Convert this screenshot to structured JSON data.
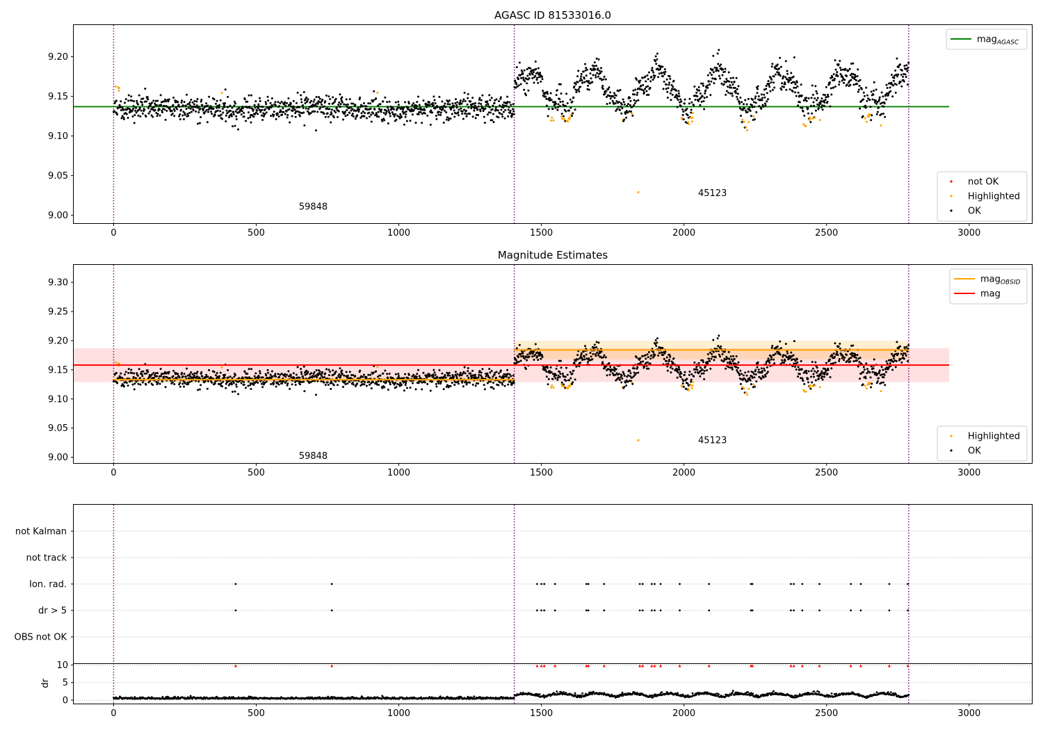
{
  "chart_data": [
    {
      "type": "scatter",
      "title": "AGASC ID 81533016.0",
      "xlim": [
        -140,
        3220
      ],
      "ylim": [
        8.99,
        9.24
      ],
      "xticks": [
        "0",
        "500",
        "1000",
        "1500",
        "2000",
        "2500",
        "3000"
      ],
      "yticks": [
        "9.00",
        "9.05",
        "9.10",
        "9.15",
        "9.20"
      ],
      "segments": [
        {
          "obsid": "59848",
          "x_start": 0,
          "x_end": 1405,
          "base_mag": 9.134,
          "noise": 0.008
        },
        {
          "obsid": "45123",
          "x_start": 1405,
          "x_end": 2788,
          "base_mag": 9.16,
          "noise": 0.012
        }
      ],
      "obs_boundaries_x": [
        0,
        1405,
        2788
      ],
      "hlines": [
        {
          "name": "mag_AGASC",
          "y": 9.137,
          "x_range": [
            -140,
            2930
          ],
          "color": "#008000"
        }
      ],
      "outliers": [
        {
          "x": 1840,
          "y": 9.029,
          "series": "Highlighted"
        }
      ],
      "series_colors": {
        "not OK": "#ff0000",
        "Highlighted": "#ffa500",
        "OK": "#000000"
      },
      "legend_top": {
        "location": "upper right",
        "entries": [
          {
            "label": "mag",
            "subscript": "AGASC",
            "color": "#008000",
            "kind": "line"
          }
        ]
      },
      "legend_bottom": {
        "location": "lower right",
        "entries": [
          {
            "label": "not OK",
            "color": "#ff0000",
            "kind": "marker"
          },
          {
            "label": "Highlighted",
            "color": "#ffa500",
            "kind": "marker"
          },
          {
            "label": "OK",
            "color": "#000000",
            "kind": "marker"
          }
        ]
      }
    },
    {
      "type": "scatter",
      "title": "Magnitude Estimates",
      "xlim": [
        -140,
        3220
      ],
      "ylim": [
        8.99,
        9.33
      ],
      "xticks": [
        "0",
        "500",
        "1000",
        "1500",
        "2000",
        "2500",
        "3000"
      ],
      "yticks": [
        "9.00",
        "9.05",
        "9.10",
        "9.15",
        "9.20",
        "9.25",
        "9.30"
      ],
      "obs_boundaries_x": [
        0,
        1405,
        2788
      ],
      "hlines": [
        {
          "name": "mag",
          "y": 9.158,
          "x_range": [
            -140,
            2930
          ],
          "color": "#ff0000",
          "band": [
            9.129,
            9.187
          ]
        },
        {
          "name": "mag_OBSID_59848",
          "y": 9.133,
          "x_range": [
            0,
            1405
          ],
          "color": "#ffa500",
          "band": [
            9.128,
            9.138
          ]
        },
        {
          "name": "mag_OBSID_45123",
          "y": 9.184,
          "x_range": [
            1405,
            2788
          ],
          "color": "#ffa500",
          "band": [
            9.168,
            9.2
          ]
        }
      ],
      "outliers": [
        {
          "x": 1840,
          "y": 9.029,
          "series": "Highlighted"
        }
      ],
      "legend_top": {
        "location": "upper right",
        "entries": [
          {
            "label": "mag",
            "subscript": "OBSID",
            "color": "#ffa500",
            "kind": "line"
          },
          {
            "label": "mag",
            "subscript": "",
            "color": "#ff0000",
            "kind": "line"
          }
        ]
      },
      "legend_bottom": {
        "location": "lower right",
        "entries": [
          {
            "label": "Highlighted",
            "color": "#ffa500",
            "kind": "marker"
          },
          {
            "label": "OK",
            "color": "#000000",
            "kind": "marker"
          }
        ]
      }
    },
    {
      "type": "scatter",
      "title": "",
      "categories": [
        "not Kalman",
        "not track",
        "Ion. rad.",
        "dr > 5",
        "OBS not OK"
      ],
      "flag_times": [
        428,
        765,
        1485,
        1500,
        1510,
        1548,
        1658,
        1665,
        1720,
        1845,
        1855,
        1887,
        1897,
        1918,
        1985,
        2088,
        2235,
        2240,
        2375,
        2385,
        2415,
        2475,
        2585,
        2620,
        2720,
        2785
      ],
      "flagged_categories": [
        "Ion. rad.",
        "dr > 5"
      ],
      "obs_boundaries_x": [
        0,
        1405,
        2788
      ]
    },
    {
      "type": "line",
      "title": "",
      "ylabel": "dr",
      "xlim": [
        -140,
        3220
      ],
      "ylim": [
        -1,
        10.5
      ],
      "xticks": [
        "0",
        "500",
        "1000",
        "1500",
        "2000",
        "2500",
        "3000"
      ],
      "yticks": [
        "0",
        "5",
        "10"
      ],
      "dr_limit_marker_y": 10,
      "obs_boundaries_x": [
        0,
        1405,
        2788
      ]
    }
  ],
  "annotations": [
    {
      "text": "59848",
      "panel": 0,
      "x": 700,
      "y": 9.007
    },
    {
      "text": "45123",
      "panel": 0,
      "x": 2100,
      "y": 9.024
    },
    {
      "text": "59848",
      "panel": 1,
      "x": 700,
      "y": 8.997
    },
    {
      "text": "45123",
      "panel": 1,
      "x": 2100,
      "y": 9.024
    }
  ]
}
